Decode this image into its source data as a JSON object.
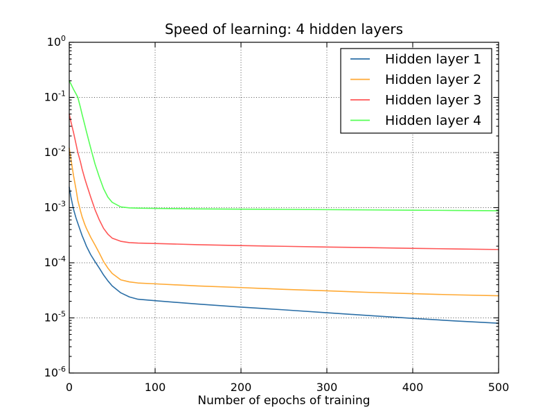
{
  "chart_data": {
    "type": "line",
    "title": "Speed of learning: 4 hidden layers",
    "xlabel": "Number of epochs of training",
    "ylabel": "",
    "y_scale": "log",
    "xlim": [
      0,
      500
    ],
    "ylim_exponents": [
      -6,
      0
    ],
    "x_ticks": [
      0,
      100,
      200,
      300,
      400,
      500
    ],
    "y_tick_exponents": [
      0,
      -1,
      -2,
      -3,
      -4,
      -5,
      -6
    ],
    "grid": true,
    "legend_position": "upper right",
    "x": [
      0,
      2,
      5,
      8,
      10,
      13,
      15,
      18,
      20,
      25,
      30,
      35,
      40,
      45,
      50,
      60,
      70,
      80,
      100,
      150,
      200,
      250,
      300,
      350,
      400,
      450,
      500
    ],
    "series": [
      {
        "name": "Hidden layer 1",
        "color": "#2A6EA6",
        "values": [
          0.00235,
          0.00155,
          0.00093,
          0.00064,
          0.00052,
          0.00038,
          0.00031,
          0.00024,
          0.0002,
          0.00014,
          0.000105,
          8e-05,
          6e-05,
          4.7e-05,
          3.8e-05,
          2.85e-05,
          2.4e-05,
          2.18e-05,
          2.05e-05,
          1.78e-05,
          1.57e-05,
          1.4e-05,
          1.24e-05,
          1.1e-05,
          9.8e-06,
          8.8e-06,
          8e-06
        ]
      },
      {
        "name": "Hidden layer 2",
        "color": "#FFA933",
        "values": [
          0.012,
          0.0075,
          0.0038,
          0.0021,
          0.00135,
          0.00088,
          0.00068,
          0.0005,
          0.00042,
          0.00029,
          0.00021,
          0.00015,
          0.000105,
          8e-05,
          6.4e-05,
          4.9e-05,
          4.5e-05,
          4.3e-05,
          4.15e-05,
          3.8e-05,
          3.55e-05,
          3.3e-05,
          3.1e-05,
          2.9e-05,
          2.75e-05,
          2.62e-05,
          2.52e-05
        ]
      },
      {
        "name": "Hidden layer 3",
        "color": "#FF5555",
        "values": [
          0.05,
          0.036,
          0.023,
          0.014,
          0.01,
          0.0068,
          0.005,
          0.0034,
          0.0027,
          0.00155,
          0.00092,
          0.0006,
          0.00042,
          0.00033,
          0.00028,
          0.000245,
          0.000232,
          0.000228,
          0.000224,
          0.000213,
          0.000205,
          0.000199,
          0.000193,
          0.000188,
          0.000183,
          0.000178,
          0.000174
        ]
      },
      {
        "name": "Hidden layer 4",
        "color": "#55FF55",
        "values": [
          0.2,
          0.175,
          0.14,
          0.115,
          0.1,
          0.066,
          0.049,
          0.032,
          0.024,
          0.012,
          0.0062,
          0.0036,
          0.0022,
          0.00155,
          0.00125,
          0.00103,
          0.00099,
          0.00098,
          0.00097,
          0.00095,
          0.00094,
          0.00093,
          0.00092,
          0.00091,
          0.0009,
          0.00089,
          0.00088
        ]
      }
    ]
  }
}
